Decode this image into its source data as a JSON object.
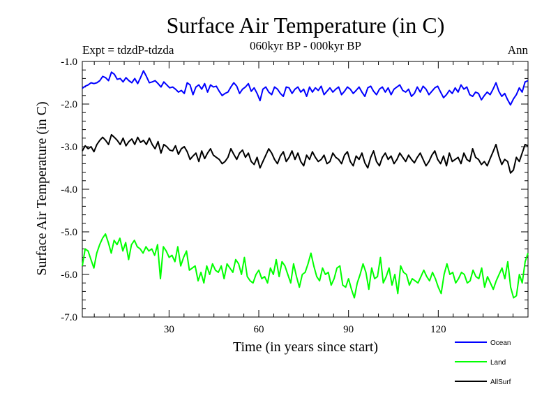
{
  "chart_data": {
    "type": "line",
    "title": "Surface Air Temperature (in C)",
    "subtitle": "060kyr BP - 000kyr BP",
    "left_label": "Expt = tdzdP-tdzda",
    "right_label": "Ann",
    "xlabel": "Time (in years since start)",
    "ylabel": "Surface Air Temperature (in C)",
    "xlim": [
      1,
      150
    ],
    "ylim": [
      -7.0,
      -1.0
    ],
    "x_ticks": [
      30,
      60,
      90,
      120
    ],
    "x_tick_labels": [
      "30",
      "60",
      "90",
      "120"
    ],
    "y_ticks": [
      -1.0,
      -2.0,
      -3.0,
      -4.0,
      -5.0,
      -6.0,
      -7.0
    ],
    "y_tick_labels": [
      "-1.0",
      "-2.0",
      "-3.0",
      "-4.0",
      "-5.0",
      "-6.0",
      "-7.0"
    ],
    "legend_position": "bottom-right",
    "series": [
      {
        "name": "Ocean",
        "color": "#0000ff",
        "values": [
          -1.63,
          -1.58,
          -1.55,
          -1.5,
          -1.52,
          -1.5,
          -1.45,
          -1.35,
          -1.38,
          -1.45,
          -1.25,
          -1.3,
          -1.42,
          -1.4,
          -1.48,
          -1.38,
          -1.45,
          -1.5,
          -1.4,
          -1.52,
          -1.38,
          -1.22,
          -1.35,
          -1.5,
          -1.48,
          -1.45,
          -1.52,
          -1.6,
          -1.48,
          -1.55,
          -1.62,
          -1.6,
          -1.65,
          -1.72,
          -1.68,
          -1.75,
          -1.5,
          -1.55,
          -1.78,
          -1.6,
          -1.55,
          -1.65,
          -1.52,
          -1.72,
          -1.55,
          -1.6,
          -1.58,
          -1.7,
          -1.8,
          -1.75,
          -1.72,
          -1.6,
          -1.5,
          -1.58,
          -1.75,
          -1.65,
          -1.6,
          -1.52,
          -1.7,
          -1.62,
          -1.75,
          -1.92,
          -1.65,
          -1.6,
          -1.72,
          -1.78,
          -1.6,
          -1.65,
          -1.75,
          -1.82,
          -1.6,
          -1.62,
          -1.75,
          -1.65,
          -1.6,
          -1.72,
          -1.65,
          -1.82,
          -1.6,
          -1.72,
          -1.62,
          -1.68,
          -1.58,
          -1.78,
          -1.7,
          -1.62,
          -1.72,
          -1.65,
          -1.6,
          -1.78,
          -1.7,
          -1.6,
          -1.65,
          -1.75,
          -1.68,
          -1.6,
          -1.72,
          -1.82,
          -1.62,
          -1.58,
          -1.7,
          -1.78,
          -1.65,
          -1.6,
          -1.72,
          -1.62,
          -1.78,
          -1.65,
          -1.6,
          -1.55,
          -1.68,
          -1.72,
          -1.65,
          -1.82,
          -1.75,
          -1.6,
          -1.72,
          -1.58,
          -1.65,
          -1.78,
          -1.7,
          -1.62,
          -1.58,
          -1.72,
          -1.85,
          -1.78,
          -1.68,
          -1.75,
          -1.62,
          -1.72,
          -1.55,
          -1.65,
          -1.6,
          -1.78,
          -1.82,
          -1.72,
          -1.75,
          -1.9,
          -1.8,
          -1.72,
          -1.78,
          -1.65,
          -1.5,
          -1.7,
          -1.82,
          -1.75,
          -1.9,
          -2.02,
          -1.88,
          -1.78,
          -1.62,
          -1.72,
          -1.48,
          -1.45
        ]
      },
      {
        "name": "Land",
        "color": "#00ff00",
        "values": [
          -5.8,
          -5.4,
          -5.45,
          -5.65,
          -5.85,
          -5.5,
          -5.3,
          -5.15,
          -5.05,
          -5.25,
          -5.5,
          -5.2,
          -5.3,
          -5.15,
          -5.45,
          -5.25,
          -5.65,
          -5.3,
          -5.2,
          -5.35,
          -5.4,
          -5.5,
          -5.35,
          -5.45,
          -5.4,
          -5.55,
          -5.3,
          -6.1,
          -5.35,
          -5.45,
          -5.6,
          -5.55,
          -5.7,
          -5.35,
          -5.8,
          -5.6,
          -5.45,
          -5.9,
          -5.85,
          -5.8,
          -6.15,
          -5.95,
          -6.2,
          -5.8,
          -6.0,
          -5.75,
          -5.9,
          -5.95,
          -5.8,
          -6.1,
          -5.75,
          -5.85,
          -5.95,
          -5.65,
          -5.75,
          -6.0,
          -5.6,
          -6.05,
          -6.15,
          -6.2,
          -6.0,
          -5.9,
          -6.1,
          -6.05,
          -6.2,
          -5.85,
          -6.0,
          -5.65,
          -6.05,
          -5.7,
          -5.8,
          -6.0,
          -6.2,
          -5.75,
          -6.05,
          -6.3,
          -6.0,
          -5.95,
          -5.75,
          -5.5,
          -5.8,
          -6.05,
          -6.15,
          -5.85,
          -6.0,
          -5.95,
          -6.25,
          -6.1,
          -5.85,
          -5.8,
          -6.25,
          -6.3,
          -6.1,
          -6.35,
          -6.55,
          -6.2,
          -6.0,
          -5.75,
          -5.95,
          -6.35,
          -5.85,
          -6.1,
          -6.05,
          -5.6,
          -6.2,
          -6.05,
          -5.85,
          -6.25,
          -6.0,
          -6.45,
          -5.8,
          -5.95,
          -6.0,
          -6.25,
          -6.1,
          -6.15,
          -6.2,
          -6.05,
          -5.9,
          -6.05,
          -6.15,
          -5.95,
          -6.1,
          -6.3,
          -6.45,
          -6.0,
          -5.75,
          -6.0,
          -5.95,
          -6.2,
          -6.1,
          -5.95,
          -6.0,
          -6.2,
          -6.15,
          -5.9,
          -6.05,
          -6.1,
          -5.85,
          -6.3,
          -6.05,
          -6.2,
          -6.35,
          -6.15,
          -6.0,
          -5.85,
          -6.1,
          -5.7,
          -6.3,
          -6.55,
          -6.5,
          -6.0,
          -6.2,
          -5.7,
          -5.5
        ]
      },
      {
        "name": "AllSurf",
        "color": "#000000",
        "values": [
          -3.1,
          -2.98,
          -3.05,
          -3.0,
          -3.12,
          -2.95,
          -2.85,
          -2.78,
          -2.85,
          -2.95,
          -2.72,
          -2.78,
          -2.85,
          -2.95,
          -2.8,
          -2.98,
          -2.88,
          -2.82,
          -2.95,
          -2.78,
          -2.9,
          -2.85,
          -2.95,
          -2.8,
          -2.95,
          -3.05,
          -2.88,
          -3.15,
          -2.95,
          -3.0,
          -3.08,
          -3.1,
          -2.98,
          -3.18,
          -3.05,
          -3.0,
          -3.12,
          -3.3,
          -3.22,
          -3.15,
          -3.35,
          -3.1,
          -3.28,
          -3.15,
          -3.05,
          -3.2,
          -3.25,
          -3.3,
          -3.4,
          -3.35,
          -3.25,
          -3.05,
          -3.18,
          -3.3,
          -3.15,
          -3.08,
          -3.25,
          -3.15,
          -3.35,
          -3.42,
          -3.25,
          -3.5,
          -3.35,
          -3.2,
          -3.05,
          -3.15,
          -3.3,
          -3.4,
          -3.22,
          -3.12,
          -3.35,
          -3.25,
          -3.1,
          -3.3,
          -3.15,
          -3.35,
          -3.45,
          -3.2,
          -3.3,
          -3.12,
          -3.25,
          -3.35,
          -3.3,
          -3.2,
          -3.4,
          -3.35,
          -3.15,
          -3.25,
          -3.3,
          -3.4,
          -3.2,
          -3.12,
          -3.35,
          -3.45,
          -3.22,
          -3.3,
          -3.15,
          -3.38,
          -3.5,
          -3.25,
          -3.1,
          -3.35,
          -3.45,
          -3.25,
          -3.15,
          -3.3,
          -3.22,
          -3.4,
          -3.3,
          -3.15,
          -3.25,
          -3.35,
          -3.2,
          -3.3,
          -3.38,
          -3.25,
          -3.15,
          -3.3,
          -3.45,
          -3.35,
          -3.2,
          -3.1,
          -3.3,
          -3.4,
          -3.22,
          -3.45,
          -3.15,
          -3.35,
          -3.3,
          -3.25,
          -3.4,
          -3.15,
          -3.3,
          -3.35,
          -3.05,
          -3.25,
          -3.3,
          -3.42,
          -3.35,
          -3.45,
          -3.28,
          -3.12,
          -2.95,
          -3.22,
          -3.42,
          -3.3,
          -3.35,
          -3.62,
          -3.55,
          -3.25,
          -3.35,
          -3.15,
          -2.95,
          -2.98
        ]
      }
    ]
  }
}
